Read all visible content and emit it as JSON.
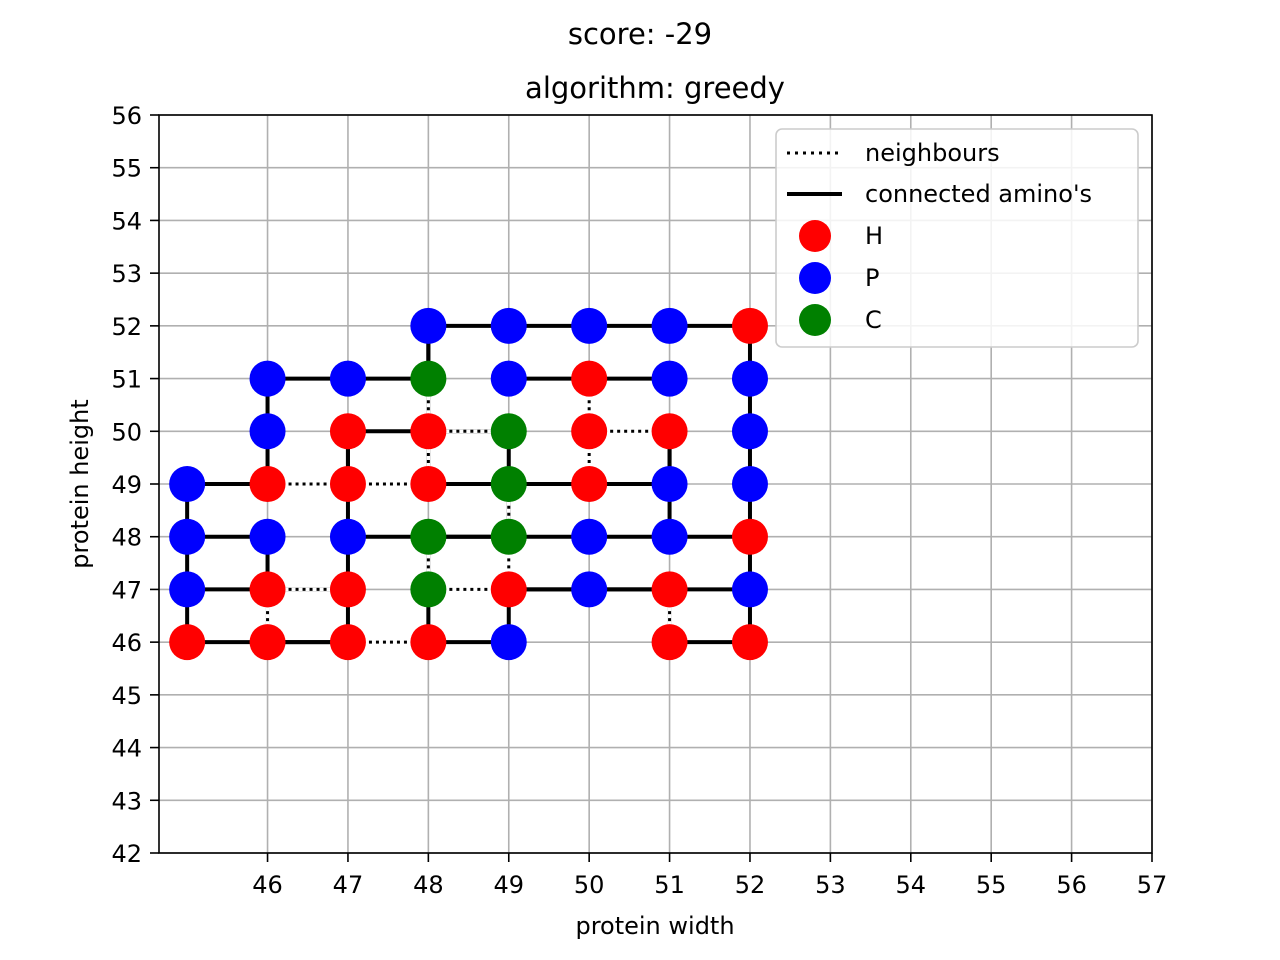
{
  "chart_data": {
    "type": "scatter",
    "suptitle": "score: -29",
    "title": "algorithm: greedy",
    "xlabel": "protein width",
    "ylabel": "protein height",
    "xlim": [
      44.65,
      57
    ],
    "ylim": [
      42,
      56
    ],
    "xticks": [
      46,
      47,
      48,
      49,
      50,
      51,
      52,
      53,
      54,
      55,
      56,
      57
    ],
    "yticks": [
      42,
      43,
      44,
      45,
      46,
      47,
      48,
      49,
      50,
      51,
      52,
      53,
      54,
      55,
      56
    ],
    "grid": true,
    "legend_position": "upper right",
    "legend": {
      "neighbours": "neighbours",
      "connected": "connected amino's",
      "H": "H",
      "P": "P",
      "C": "C"
    },
    "colors": {
      "H": "#ff0000",
      "P": "#0000ff",
      "C": "#008000",
      "line": "#000000",
      "grid": "#b0b0b0"
    },
    "chain": [
      [
        45,
        46,
        "H"
      ],
      [
        45,
        47,
        "P"
      ],
      [
        45,
        48,
        "P"
      ],
      [
        45,
        49,
        "P"
      ],
      [
        46,
        49,
        "H"
      ],
      [
        46,
        50,
        "P"
      ],
      [
        46,
        51,
        "P"
      ],
      [
        47,
        51,
        "P"
      ],
      [
        48,
        51,
        "C"
      ],
      [
        48,
        52,
        "P"
      ],
      [
        49,
        52,
        "P"
      ],
      [
        50,
        52,
        "P"
      ],
      [
        51,
        52,
        "P"
      ],
      [
        52,
        52,
        "H"
      ],
      [
        52,
        51,
        "P"
      ],
      [
        52,
        50,
        "P"
      ],
      [
        52,
        49,
        "P"
      ],
      [
        52,
        48,
        "H"
      ],
      [
        52,
        47,
        "P"
      ],
      [
        52,
        46,
        "H"
      ],
      [
        51,
        46,
        "H"
      ],
      [
        51,
        47,
        "H"
      ],
      [
        50,
        47,
        "P"
      ],
      [
        49,
        47,
        "H"
      ],
      [
        49,
        46,
        "P"
      ],
      [
        48,
        46,
        "H"
      ],
      [
        48,
        47,
        "C"
      ],
      [
        48,
        48,
        "C"
      ],
      [
        49,
        48,
        "C"
      ],
      [
        49,
        49,
        "C"
      ],
      [
        49,
        50,
        "C"
      ],
      [
        48,
        50,
        "H"
      ],
      [
        47,
        50,
        "H"
      ],
      [
        47,
        49,
        "H"
      ],
      [
        48,
        49,
        "H"
      ],
      [
        48,
        48,
        "C"
      ],
      [
        47,
        48,
        "P"
      ],
      [
        47,
        47,
        "H"
      ],
      [
        47,
        46,
        "H"
      ],
      [
        46,
        46,
        "H"
      ],
      [
        46,
        47,
        "H"
      ],
      [
        46,
        48,
        "P"
      ],
      [
        45,
        48,
        "P"
      ],
      [
        45,
        49,
        "P"
      ],
      [
        46,
        49,
        "H"
      ],
      [
        47,
        49,
        "H"
      ],
      [
        48,
        49,
        "H"
      ],
      [
        49,
        49,
        "C"
      ],
      [
        50,
        49,
        "H"
      ],
      [
        51,
        49,
        "P"
      ],
      [
        51,
        50,
        "H"
      ],
      [
        50,
        50,
        "H"
      ],
      [
        50,
        51,
        "H"
      ],
      [
        51,
        51,
        "P"
      ],
      [
        51,
        48,
        "P"
      ],
      [
        50,
        48,
        "P"
      ],
      [
        49,
        51,
        "P"
      ],
      [
        50,
        51,
        "H"
      ]
    ],
    "segments": [
      [
        [
          45,
          46
        ],
        [
          45,
          49
        ]
      ],
      [
        [
          45,
          49
        ],
        [
          46,
          49
        ]
      ],
      [
        [
          46,
          49
        ],
        [
          46,
          51
        ]
      ],
      [
        [
          46,
          51
        ],
        [
          48,
          51
        ]
      ],
      [
        [
          48,
          51
        ],
        [
          48,
          52
        ]
      ],
      [
        [
          48,
          52
        ],
        [
          52,
          52
        ]
      ],
      [
        [
          52,
          52
        ],
        [
          52,
          46
        ]
      ],
      [
        [
          52,
          46
        ],
        [
          51,
          46
        ]
      ],
      [
        [
          51,
          46
        ],
        [
          51,
          47
        ]
      ],
      [
        [
          51,
          47
        ],
        [
          49,
          47
        ]
      ],
      [
        [
          49,
          47
        ],
        [
          49,
          46
        ]
      ],
      [
        [
          49,
          46
        ],
        [
          48,
          46
        ]
      ],
      [
        [
          48,
          46
        ],
        [
          48,
          48
        ]
      ],
      [
        [
          48,
          48
        ],
        [
          49,
          48
        ]
      ],
      [
        [
          49,
          48
        ],
        [
          49,
          50
        ]
      ],
      [
        [
          49,
          50
        ],
        [
          47,
          50
        ]
      ],
      [
        [
          47,
          50
        ],
        [
          47,
          46
        ]
      ],
      [
        [
          47,
          46
        ],
        [
          46,
          46
        ]
      ],
      [
        [
          46,
          46
        ],
        [
          46,
          48
        ]
      ],
      [
        [
          46,
          48
        ],
        [
          45,
          48
        ]
      ],
      [
        [
          45,
          49
        ],
        [
          50,
          49
        ]
      ],
      [
        [
          50,
          49
        ],
        [
          51,
          49
        ]
      ],
      [
        [
          51,
          49
        ],
        [
          51,
          50
        ]
      ],
      [
        [
          51,
          48
        ],
        [
          51,
          50
        ]
      ],
      [
        [
          47,
          48
        ],
        [
          52,
          48
        ]
      ],
      [
        [
          52,
          47
        ],
        [
          49,
          47
        ]
      ],
      [
        [
          45,
          47
        ],
        [
          47,
          47
        ]
      ],
      [
        [
          49,
          51
        ],
        [
          51,
          51
        ]
      ],
      [
        [
          45,
          46
        ],
        [
          47,
          46
        ]
      ],
      [
        [
          48,
          49
        ],
        [
          48,
          52
        ]
      ],
      [
        [
          47,
          49
        ],
        [
          47,
          50
        ]
      ]
    ],
    "neighbour_links": [
      [
        [
          46,
          49
        ],
        [
          47,
          49
        ]
      ],
      [
        [
          47,
          49
        ],
        [
          48,
          49
        ]
      ],
      [
        [
          48,
          50
        ],
        [
          49,
          50
        ]
      ],
      [
        [
          50,
          50
        ],
        [
          51,
          50
        ]
      ],
      [
        [
          46,
          47
        ],
        [
          47,
          47
        ]
      ],
      [
        [
          48,
          47
        ],
        [
          49,
          47
        ]
      ],
      [
        [
          47,
          46
        ],
        [
          48,
          46
        ]
      ],
      [
        [
          46,
          46
        ],
        [
          46,
          47
        ]
      ],
      [
        [
          51,
          46
        ],
        [
          51,
          47
        ]
      ],
      [
        [
          50,
          50
        ],
        [
          50,
          51
        ]
      ],
      [
        [
          50,
          49
        ],
        [
          50,
          50
        ]
      ],
      [
        [
          48,
          50
        ],
        [
          48,
          51
        ]
      ],
      [
        [
          48,
          49
        ],
        [
          48,
          50
        ]
      ],
      [
        [
          49,
          48
        ],
        [
          49,
          49
        ]
      ],
      [
        [
          49,
          47
        ],
        [
          49,
          48
        ]
      ],
      [
        [
          48,
          47
        ],
        [
          48,
          48
        ]
      ]
    ],
    "points": [
      {
        "x": 45,
        "y": 46,
        "type": "H"
      },
      {
        "x": 46,
        "y": 46,
        "type": "H"
      },
      {
        "x": 47,
        "y": 46,
        "type": "H"
      },
      {
        "x": 48,
        "y": 46,
        "type": "H"
      },
      {
        "x": 49,
        "y": 46,
        "type": "P"
      },
      {
        "x": 51,
        "y": 46,
        "type": "H"
      },
      {
        "x": 52,
        "y": 46,
        "type": "H"
      },
      {
        "x": 45,
        "y": 47,
        "type": "P"
      },
      {
        "x": 46,
        "y": 47,
        "type": "H"
      },
      {
        "x": 47,
        "y": 47,
        "type": "H"
      },
      {
        "x": 48,
        "y": 47,
        "type": "C"
      },
      {
        "x": 49,
        "y": 47,
        "type": "H"
      },
      {
        "x": 50,
        "y": 47,
        "type": "P"
      },
      {
        "x": 51,
        "y": 47,
        "type": "H"
      },
      {
        "x": 52,
        "y": 47,
        "type": "P"
      },
      {
        "x": 45,
        "y": 48,
        "type": "P"
      },
      {
        "x": 46,
        "y": 48,
        "type": "P"
      },
      {
        "x": 47,
        "y": 48,
        "type": "P"
      },
      {
        "x": 48,
        "y": 48,
        "type": "C"
      },
      {
        "x": 49,
        "y": 48,
        "type": "C"
      },
      {
        "x": 50,
        "y": 48,
        "type": "P"
      },
      {
        "x": 51,
        "y": 48,
        "type": "P"
      },
      {
        "x": 52,
        "y": 48,
        "type": "H"
      },
      {
        "x": 45,
        "y": 49,
        "type": "P"
      },
      {
        "x": 46,
        "y": 49,
        "type": "H"
      },
      {
        "x": 47,
        "y": 49,
        "type": "H"
      },
      {
        "x": 48,
        "y": 49,
        "type": "H"
      },
      {
        "x": 49,
        "y": 49,
        "type": "C"
      },
      {
        "x": 50,
        "y": 49,
        "type": "H"
      },
      {
        "x": 51,
        "y": 49,
        "type": "P"
      },
      {
        "x": 52,
        "y": 49,
        "type": "P"
      },
      {
        "x": 46,
        "y": 50,
        "type": "P"
      },
      {
        "x": 47,
        "y": 50,
        "type": "H"
      },
      {
        "x": 48,
        "y": 50,
        "type": "H"
      },
      {
        "x": 49,
        "y": 50,
        "type": "C"
      },
      {
        "x": 50,
        "y": 50,
        "type": "H"
      },
      {
        "x": 51,
        "y": 50,
        "type": "H"
      },
      {
        "x": 52,
        "y": 50,
        "type": "P"
      },
      {
        "x": 46,
        "y": 51,
        "type": "P"
      },
      {
        "x": 47,
        "y": 51,
        "type": "P"
      },
      {
        "x": 48,
        "y": 51,
        "type": "C"
      },
      {
        "x": 49,
        "y": 51,
        "type": "P"
      },
      {
        "x": 50,
        "y": 51,
        "type": "H"
      },
      {
        "x": 51,
        "y": 51,
        "type": "P"
      },
      {
        "x": 52,
        "y": 51,
        "type": "P"
      },
      {
        "x": 48,
        "y": 52,
        "type": "P"
      },
      {
        "x": 49,
        "y": 52,
        "type": "P"
      },
      {
        "x": 50,
        "y": 52,
        "type": "P"
      },
      {
        "x": 51,
        "y": 52,
        "type": "P"
      },
      {
        "x": 52,
        "y": 52,
        "type": "H"
      }
    ]
  }
}
